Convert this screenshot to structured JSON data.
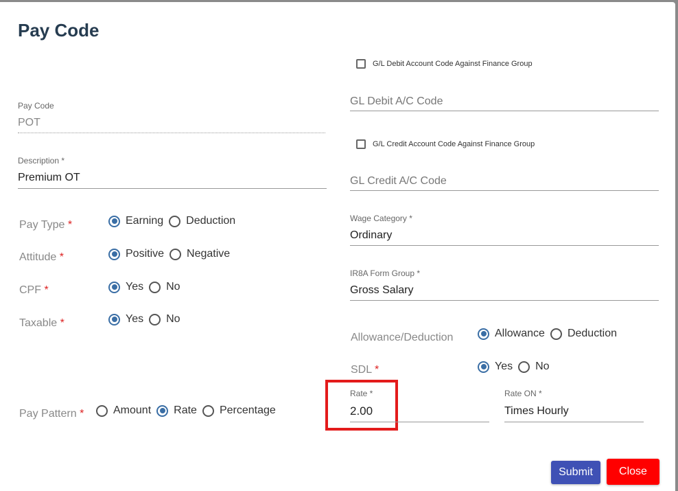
{
  "title": "Pay Code",
  "pay_code": {
    "label": "Pay Code",
    "value": "POT"
  },
  "description": {
    "label": "Description *",
    "value": "Premium OT"
  },
  "pay_type": {
    "label": "Pay Type",
    "options": [
      "Earning",
      "Deduction"
    ],
    "selected": "Earning"
  },
  "attitude": {
    "label": "Attitude",
    "options": [
      "Positive",
      "Negative"
    ],
    "selected": "Positive"
  },
  "cpf": {
    "label": "CPF",
    "options": [
      "Yes",
      "No"
    ],
    "selected": "Yes"
  },
  "taxable": {
    "label": "Taxable",
    "options": [
      "Yes",
      "No"
    ],
    "selected": "Yes"
  },
  "pay_pattern": {
    "label": "Pay Pattern",
    "options": [
      "Amount",
      "Rate",
      "Percentage"
    ],
    "selected": "Rate"
  },
  "gl_debit_check": {
    "label": "G/L Debit Account Code Against Finance Group",
    "checked": false
  },
  "gl_debit": {
    "placeholder": "GL Debit A/C Code"
  },
  "gl_credit_check": {
    "label": "G/L Credit Account Code Against Finance Group",
    "checked": false
  },
  "gl_credit": {
    "placeholder": "GL Credit A/C Code"
  },
  "wage_category": {
    "label": "Wage Category *",
    "value": "Ordinary"
  },
  "ir8a": {
    "label": "IR8A Form Group *",
    "value": "Gross Salary"
  },
  "allowance_deduction": {
    "label": "Allowance/Deduction",
    "options": [
      "Allowance",
      "Deduction"
    ],
    "selected": "Allowance"
  },
  "sdl": {
    "label": "SDL",
    "options": [
      "Yes",
      "No"
    ],
    "selected": "Yes"
  },
  "rate": {
    "label": "Rate *",
    "value": "2.00"
  },
  "rate_on": {
    "label": "Rate ON *",
    "value": "Times Hourly"
  },
  "required_mark": "*",
  "buttons": {
    "submit": "Submit",
    "close": "Close"
  },
  "colors": {
    "radio": "#3a6ea5",
    "submit": "#3f51b5",
    "close": "#ff0000",
    "highlight": "#e31b1b"
  }
}
